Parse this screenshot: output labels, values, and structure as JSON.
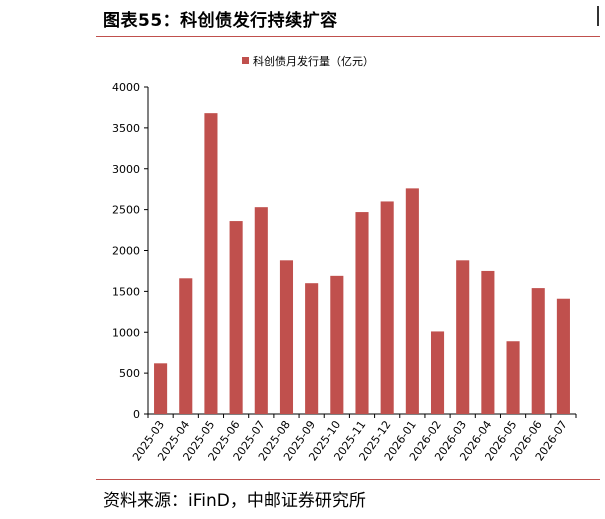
{
  "header": {
    "title": "图表55：科创债发行持续扩容"
  },
  "footer": {
    "source": "资料来源：iFinD，中邮证券研究所"
  },
  "chart_data": {
    "type": "bar",
    "title": "",
    "xlabel": "",
    "ylabel": "",
    "legend_position": "top-center",
    "grid": false,
    "ylim": [
      0,
      4000
    ],
    "yticks": [
      0,
      500,
      1000,
      1500,
      2000,
      2500,
      3000,
      3500,
      4000
    ],
    "categories": [
      "2025-03",
      "2025-04",
      "2025-05",
      "2025-06",
      "2025-07",
      "2025-08",
      "2025-09",
      "2025-10",
      "2025-11",
      "2025-12",
      "2026-01",
      "2026-02",
      "2026-03",
      "2026-04",
      "2026-05",
      "2026-06",
      "2026-07"
    ],
    "series": [
      {
        "name": "科创债月发行量（亿元）",
        "color": "#c0504d",
        "values": [
          620,
          1660,
          3680,
          2360,
          2530,
          1880,
          1600,
          1690,
          2470,
          2600,
          2760,
          1010,
          1880,
          1750,
          890,
          1540,
          1410
        ]
      }
    ]
  }
}
